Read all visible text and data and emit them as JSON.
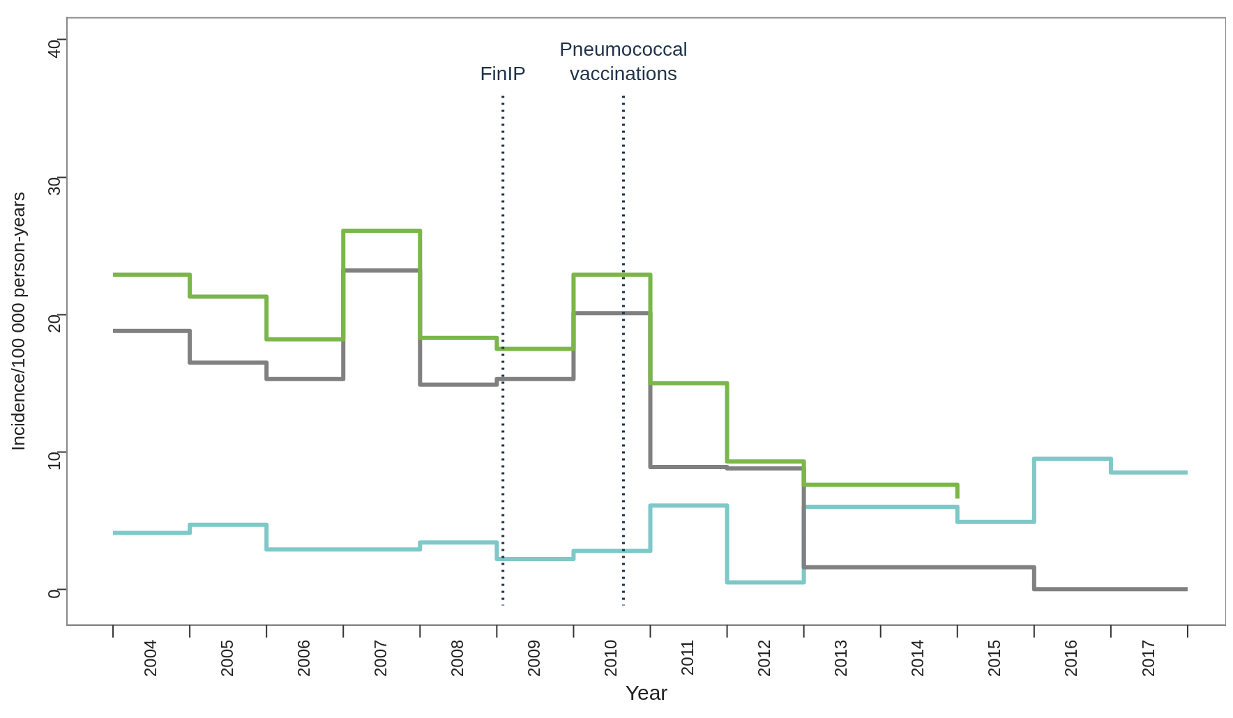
{
  "chart_data": {
    "type": "step",
    "xlabel": "Year",
    "ylabel": "Incidence/100 000 person-years",
    "x": [
      2004,
      2005,
      2006,
      2007,
      2008,
      2009,
      2010,
      2011,
      2012,
      2013,
      2014,
      2015,
      2016,
      2017,
      2018
    ],
    "xlim": [
      2003.4,
      2018.5
    ],
    "xticks": [
      {
        "value": 2004.5,
        "label": "2004"
      },
      {
        "value": 2005.5,
        "label": "2005"
      },
      {
        "value": 2006.5,
        "label": "2006"
      },
      {
        "value": 2007.5,
        "label": "2007"
      },
      {
        "value": 2008.5,
        "label": "2008"
      },
      {
        "value": 2009.5,
        "label": "2009"
      },
      {
        "value": 2010.5,
        "label": "2010"
      },
      {
        "value": 2011.5,
        "label": "2011"
      },
      {
        "value": 2012.5,
        "label": "2012"
      },
      {
        "value": 2013.5,
        "label": "2013"
      },
      {
        "value": 2014.5,
        "label": "2014"
      },
      {
        "value": 2015.5,
        "label": "2015"
      },
      {
        "value": 2016.5,
        "label": "2016"
      },
      {
        "value": 2017.5,
        "label": "2017"
      }
    ],
    "ylim": [
      -2.6,
      41.6
    ],
    "yticks": [
      0,
      10,
      20,
      30,
      40
    ],
    "series": [
      {
        "color": "#7ab648",
        "values": [
          22.9,
          21.3,
          18.2,
          26.1,
          18.3,
          17.5,
          22.9,
          15.0,
          9.3,
          7.6,
          7.6,
          6.6,
          null,
          null,
          null
        ]
      },
      {
        "color": "#808080",
        "values": [
          18.8,
          16.5,
          15.3,
          23.2,
          14.9,
          15.3,
          20.1,
          8.9,
          8.8,
          1.6,
          1.6,
          1.6,
          0,
          0,
          0
        ]
      },
      {
        "color": "#7ec8c8",
        "values": [
          4.1,
          4.7,
          2.9,
          2.9,
          3.4,
          2.2,
          2.8,
          6.1,
          0.5,
          6.0,
          6.0,
          4.9,
          9.5,
          8.5,
          8.5
        ]
      }
    ],
    "ref_lines": [
      {
        "axis": "x",
        "value": 2009.08,
        "label": "FinIP",
        "color": "#1f3349",
        "line_style": "dotted"
      },
      {
        "axis": "x",
        "value": 2010.65,
        "label": "Pneumococcal vaccinations",
        "color": "#1f3349",
        "line_style": "dotted"
      }
    ],
    "grid": false,
    "legend": false,
    "line_style": "solid",
    "marker": "none"
  }
}
